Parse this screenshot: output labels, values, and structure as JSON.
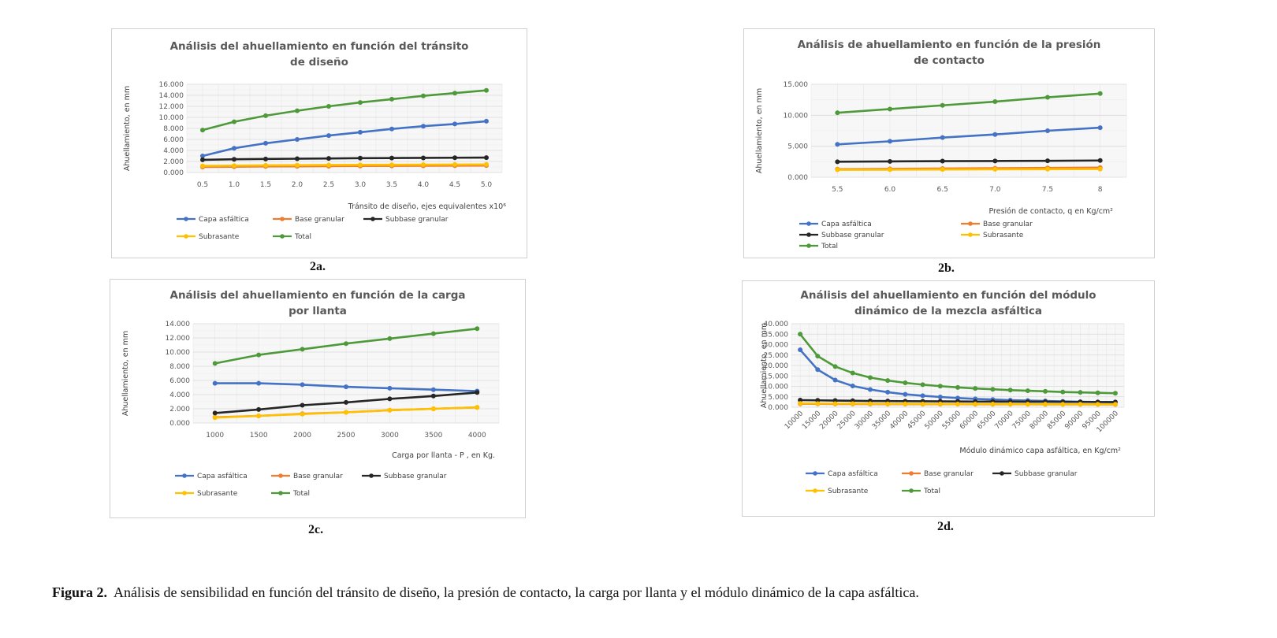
{
  "caption": {
    "label": "Figura 2.",
    "text": "Análisis de sensibilidad en función del tránsito de diseño, la presión de contacto, la carga por llanta y el módulo dinámico de la capa asfáltica."
  },
  "colors": {
    "capa_asfaltica": "#4472C4",
    "base_granular": "#ED7D31",
    "subbase_granular": "#262626",
    "subrasante": "#FFC000",
    "total": "#4E9A3A"
  },
  "chart_data": [
    {
      "id": "2a",
      "panel_label": "2a.",
      "type": "line",
      "title": "Análisis del ahuellamiento en función del tránsito\nde diseño",
      "xlabel": "Tránsito de diseño, ejes equivalentes x10⁶",
      "ylabel": "Ahuellamiento, en mm",
      "categories": [
        "0.5",
        "1.0",
        "1.5",
        "2.0",
        "2.5",
        "3.0",
        "3.5",
        "4.0",
        "4.5",
        "5.0"
      ],
      "ylim": [
        0,
        16
      ],
      "yticks": [
        "0.000",
        "2.000",
        "4.000",
        "6.000",
        "8.000",
        "10.000",
        "12.000",
        "14.000",
        "16.000"
      ],
      "grid": true,
      "legend_position": "bottom",
      "series": [
        {
          "name": "Capa asfáltica",
          "color": "#4472C4",
          "values": [
            3.0,
            4.4,
            5.3,
            6.0,
            6.7,
            7.3,
            7.9,
            8.4,
            8.8,
            9.3
          ]
        },
        {
          "name": "Base granular",
          "color": "#ED7D31",
          "values": [
            1.0,
            1.05,
            1.1,
            1.12,
            1.15,
            1.18,
            1.2,
            1.22,
            1.24,
            1.26
          ]
        },
        {
          "name": "Subbase granular",
          "color": "#262626",
          "values": [
            2.3,
            2.4,
            2.45,
            2.5,
            2.55,
            2.6,
            2.62,
            2.65,
            2.68,
            2.7
          ]
        },
        {
          "name": "Subrasante",
          "color": "#FFC000",
          "values": [
            1.2,
            1.25,
            1.3,
            1.33,
            1.36,
            1.38,
            1.4,
            1.42,
            1.44,
            1.46
          ]
        },
        {
          "name": "Total",
          "color": "#4E9A3A",
          "values": [
            7.7,
            9.2,
            10.3,
            11.2,
            12.0,
            12.7,
            13.3,
            13.9,
            14.4,
            14.9
          ]
        }
      ],
      "legend_rows": [
        [
          "Capa asfáltica",
          "Base granular",
          "Subbase granular"
        ],
        [
          "Subrasante",
          "Total"
        ]
      ]
    },
    {
      "id": "2b",
      "panel_label": "2b.",
      "type": "line",
      "title": "Análisis de ahuellamiento en función de la presión\nde contacto",
      "xlabel": "Presión de contacto, q en Kg/cm²",
      "ylabel": "Ahuellamiento, en mm",
      "categories": [
        "5.5",
        "6.0",
        "6.5",
        "7.0",
        "7.5",
        "8"
      ],
      "ylim": [
        0,
        15
      ],
      "yticks": [
        "0.000",
        "5.000",
        "10.000",
        "15.000"
      ],
      "grid": true,
      "legend_position": "bottom",
      "series": [
        {
          "name": "Capa asfáltica",
          "color": "#4472C4",
          "values": [
            5.3,
            5.8,
            6.4,
            6.9,
            7.5,
            8.0
          ]
        },
        {
          "name": "Base granular",
          "color": "#ED7D31",
          "values": [
            1.3,
            1.35,
            1.4,
            1.45,
            1.5,
            1.55
          ]
        },
        {
          "name": "Subbase granular",
          "color": "#262626",
          "values": [
            2.5,
            2.55,
            2.6,
            2.62,
            2.65,
            2.7
          ]
        },
        {
          "name": "Subrasante",
          "color": "#FFC000",
          "values": [
            1.2,
            1.22,
            1.25,
            1.28,
            1.3,
            1.32
          ]
        },
        {
          "name": "Total",
          "color": "#4E9A3A",
          "values": [
            10.4,
            11.0,
            11.6,
            12.2,
            12.9,
            13.5
          ]
        }
      ],
      "legend_rows": [
        [
          "Capa asfáltica",
          "Base granular"
        ],
        [
          "Subbase granular",
          "Subrasante"
        ],
        [
          "Total"
        ]
      ]
    },
    {
      "id": "2c",
      "panel_label": "2c.",
      "type": "line",
      "title": "Análisis del ahuellamiento en función de la carga\npor llanta",
      "xlabel": "Carga por llanta - P , en Kg.",
      "ylabel": "Ahuellamiento, en mm",
      "categories": [
        "1000",
        "1500",
        "2000",
        "2500",
        "3000",
        "3500",
        "4000"
      ],
      "ylim": [
        0,
        14
      ],
      "yticks": [
        "0.000",
        "2.000",
        "4.000",
        "6.000",
        "8.000",
        "10.000",
        "12.000",
        "14.000"
      ],
      "grid": true,
      "legend_position": "bottom",
      "series": [
        {
          "name": "Capa asfáltica",
          "color": "#4472C4",
          "values": [
            5.6,
            5.6,
            5.4,
            5.1,
            4.9,
            4.7,
            4.5
          ]
        },
        {
          "name": "Base granular",
          "color": "#ED7D31",
          "values": [
            0.8,
            1.0,
            1.3,
            1.5,
            1.8,
            2.0,
            2.2
          ]
        },
        {
          "name": "Subbase granular",
          "color": "#262626",
          "values": [
            1.4,
            1.9,
            2.5,
            2.9,
            3.4,
            3.8,
            4.3
          ]
        },
        {
          "name": "Subrasante",
          "color": "#FFC000",
          "values": [
            0.75,
            1.0,
            1.25,
            1.5,
            1.8,
            2.0,
            2.2
          ]
        },
        {
          "name": "Total",
          "color": "#4E9A3A",
          "values": [
            8.4,
            9.6,
            10.4,
            11.2,
            11.9,
            12.6,
            13.3
          ]
        }
      ],
      "legend_rows": [
        [
          "Capa asfáltica",
          "Base granular",
          "Subbase granular"
        ],
        [
          "Subrasante",
          "Total"
        ]
      ]
    },
    {
      "id": "2d",
      "panel_label": "2d.",
      "type": "line",
      "title": "Análisis del ahuellamiento en función del módulo\ndinámico de la mezcla asfáltica",
      "xlabel": "Módulo dinámico capa asfáltica, en Kg/cm²",
      "ylabel": "Ahuellamiento, en mm",
      "categories": [
        "10000",
        "15000",
        "20000",
        "25000",
        "30000",
        "35000",
        "40000",
        "45000",
        "50000",
        "55000",
        "60000",
        "65000",
        "70000",
        "75000",
        "80000",
        "85000",
        "90000",
        "95000",
        "100000"
      ],
      "ylim": [
        0,
        40
      ],
      "yticks": [
        "0.000",
        "5.000",
        "10.000",
        "15.000",
        "20.000",
        "25.000",
        "30.000",
        "35.000",
        "40.000"
      ],
      "grid": true,
      "legend_position": "bottom",
      "series": [
        {
          "name": "Capa asfáltica",
          "color": "#4472C4",
          "values": [
            27.5,
            18.0,
            13.0,
            10.2,
            8.5,
            7.2,
            6.2,
            5.5,
            4.9,
            4.4,
            4.0,
            3.7,
            3.4,
            3.2,
            3.0,
            2.8,
            2.6,
            2.5,
            2.4
          ]
        },
        {
          "name": "Base granular",
          "color": "#ED7D31",
          "values": [
            1.6,
            1.6,
            1.55,
            1.55,
            1.5,
            1.5,
            1.5,
            1.45,
            1.45,
            1.45,
            1.4,
            1.4,
            1.4,
            1.4,
            1.35,
            1.35,
            1.35,
            1.35,
            1.3
          ]
        },
        {
          "name": "Subbase granular",
          "color": "#262626",
          "values": [
            3.4,
            3.3,
            3.2,
            3.1,
            3.0,
            2.95,
            2.9,
            2.85,
            2.8,
            2.75,
            2.7,
            2.7,
            2.65,
            2.6,
            2.6,
            2.55,
            2.55,
            2.5,
            2.5
          ]
        },
        {
          "name": "Subrasante",
          "color": "#FFC000",
          "values": [
            1.8,
            1.75,
            1.7,
            1.7,
            1.65,
            1.6,
            1.6,
            1.55,
            1.55,
            1.5,
            1.5,
            1.5,
            1.45,
            1.45,
            1.45,
            1.4,
            1.4,
            1.4,
            1.4
          ]
        },
        {
          "name": "Total",
          "color": "#4E9A3A",
          "values": [
            35.0,
            24.5,
            19.5,
            16.4,
            14.2,
            12.8,
            11.7,
            10.8,
            10.1,
            9.5,
            9.0,
            8.6,
            8.2,
            7.9,
            7.6,
            7.3,
            7.1,
            6.9,
            6.7
          ]
        }
      ],
      "legend_rows": [
        [
          "Capa asfáltica",
          "Base granular",
          "Subbase granular"
        ],
        [
          "Subrasante",
          "Total"
        ]
      ]
    }
  ]
}
